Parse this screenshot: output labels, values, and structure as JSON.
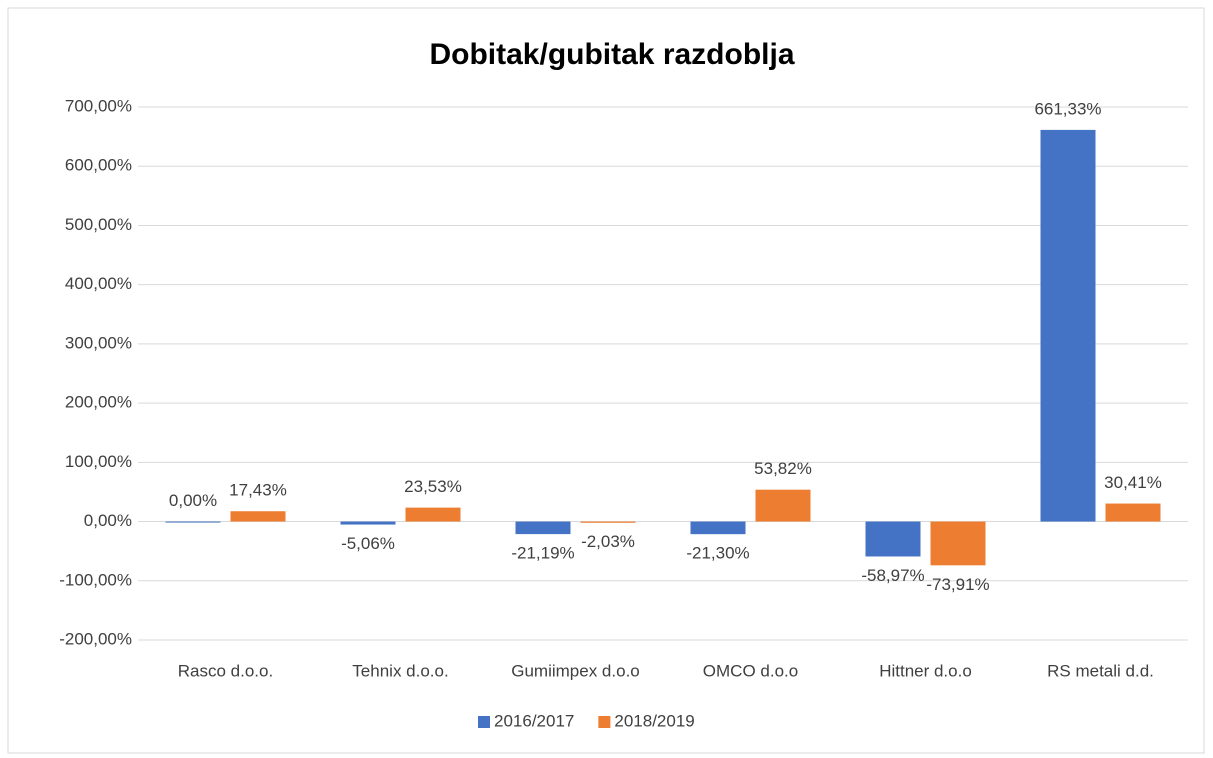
{
  "chart_data": {
    "type": "bar",
    "title": "Dobitak/gubitak razdoblja",
    "categories": [
      "Rasco d.o.o.",
      "Tehnix d.o.o.",
      "Gumiimpex d.o.o",
      "OMCO d.o.o",
      "Hittner d.o.o",
      "RS metali d.d."
    ],
    "series": [
      {
        "name": "2016/2017",
        "color": "#4472c4",
        "values": [
          0,
          -5.06,
          -21.19,
          -21.3,
          -58.97,
          661.33
        ],
        "value_labels": [
          "0,00%",
          "-5,06%",
          "-21,19%",
          "-21,30%",
          "-58,97%",
          "661,33%"
        ]
      },
      {
        "name": "2018/2019",
        "color": "#ed7d31",
        "values": [
          17.43,
          23.53,
          -2.03,
          53.82,
          -73.91,
          30.41
        ],
        "value_labels": [
          "17,43%",
          "23,53%",
          "-2,03%",
          "53,82%",
          "-73,91%",
          "30,41%"
        ]
      }
    ],
    "ylim": [
      -200,
      700
    ],
    "yticks": [
      {
        "value": -200,
        "label": "-200,00%"
      },
      {
        "value": -100,
        "label": "-100,00%"
      },
      {
        "value": 0,
        "label": "0,00%"
      },
      {
        "value": 100,
        "label": "100,00%"
      },
      {
        "value": 200,
        "label": "200,00%"
      },
      {
        "value": 300,
        "label": "300,00%"
      },
      {
        "value": 400,
        "label": "400,00%"
      },
      {
        "value": 500,
        "label": "500,00%"
      },
      {
        "value": 600,
        "label": "600,00%"
      },
      {
        "value": 700,
        "label": "700,00%"
      }
    ],
    "grid": true,
    "legend": "bottom"
  }
}
